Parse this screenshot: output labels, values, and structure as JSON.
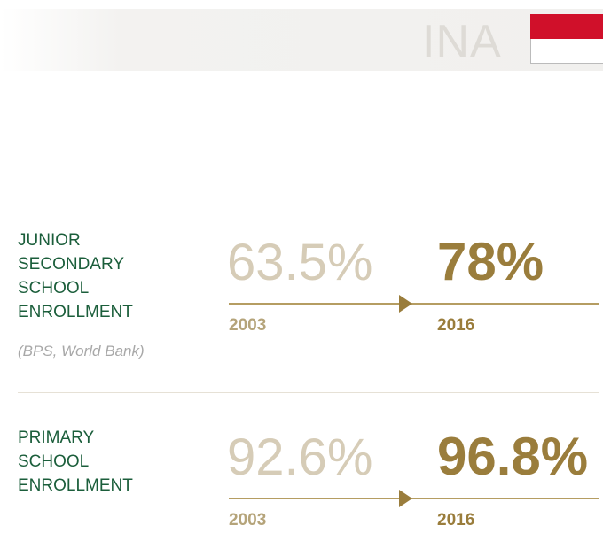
{
  "header": {
    "title": "INA"
  },
  "rows": [
    {
      "label": [
        "JUNIOR",
        "SECONDARY",
        "SCHOOL",
        "ENROLLMENT"
      ],
      "source": "(BPS, World Bank)",
      "before": "63.5%",
      "after": "78%",
      "before_year": "2003",
      "after_year": "2016"
    },
    {
      "label": [
        "PRIMARY",
        "SCHOOL",
        "ENROLLMENT"
      ],
      "before": "92.6%",
      "after": "96.8%",
      "before_year": "2003",
      "after_year": "2016"
    }
  ]
}
